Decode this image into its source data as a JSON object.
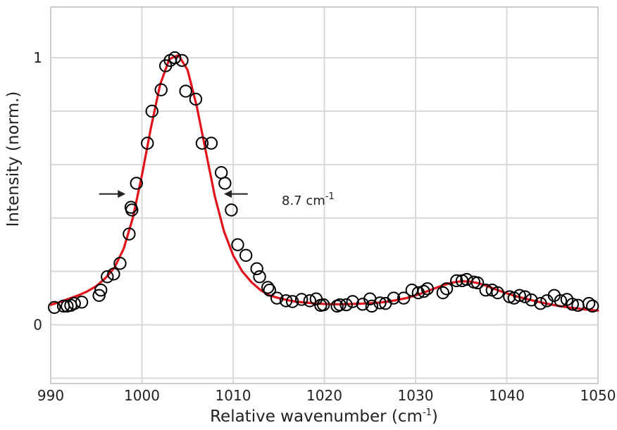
{
  "chart_data": {
    "type": "scatter",
    "xlabel_main": "Relative wavenumber (cm",
    "xlabel_sup": "-1",
    "xlabel_end": ")",
    "ylabel": "Intensity (norm.)",
    "xlim": [
      990,
      1050
    ],
    "ylim": [
      -0.22,
      1.19
    ],
    "xticks": [
      990,
      1000,
      1010,
      1020,
      1030,
      1040,
      1050
    ],
    "xtick_labels": [
      "990",
      "1000",
      "1010",
      "1020",
      "1030",
      "1040",
      "1050"
    ],
    "yticks": [
      0,
      1
    ],
    "ytick_labels": [
      "0",
      "1"
    ],
    "grid": true,
    "gridlines_x": [
      990,
      1000,
      1010,
      1020,
      1030,
      1040,
      1050
    ],
    "gridlines_y": [
      -0.2,
      0,
      0.2,
      0.4,
      0.6,
      0.8,
      1.0
    ],
    "annotation": {
      "text_main": "8.7 cm",
      "text_sup": "-1",
      "y": 0.49,
      "left_arrow_x": [
        995.3,
        998.2
      ],
      "right_arrow_x": [
        1011.6,
        1009.0
      ]
    },
    "colors": {
      "fit": "#e3131b",
      "markers": "#000000",
      "grid": "#d9d9d9",
      "frame": "#cccccc"
    },
    "series": [
      {
        "kind": "fit",
        "x": [
          990,
          991,
          992,
          993,
          994,
          995,
          996,
          997,
          998,
          999,
          1000,
          1001,
          1002,
          1003,
          1004,
          1005,
          1006,
          1007,
          1008,
          1009,
          1010,
          1011,
          1012,
          1013,
          1014,
          1015,
          1016,
          1017,
          1018,
          1019,
          1020,
          1021,
          1022,
          1023,
          1024,
          1025,
          1026,
          1027,
          1028,
          1029,
          1030,
          1031,
          1032,
          1033,
          1034,
          1035,
          1036,
          1037,
          1038,
          1039,
          1040,
          1041,
          1042,
          1043,
          1044,
          1045,
          1046,
          1047,
          1048,
          1049,
          1050
        ],
        "y": [
          0.075,
          0.085,
          0.098,
          0.11,
          0.125,
          0.145,
          0.175,
          0.215,
          0.285,
          0.4,
          0.56,
          0.74,
          0.9,
          0.995,
          1.01,
          0.955,
          0.82,
          0.65,
          0.48,
          0.35,
          0.26,
          0.2,
          0.16,
          0.13,
          0.11,
          0.1,
          0.092,
          0.086,
          0.083,
          0.08,
          0.078,
          0.077,
          0.077,
          0.078,
          0.079,
          0.081,
          0.083,
          0.087,
          0.093,
          0.1,
          0.11,
          0.122,
          0.135,
          0.148,
          0.158,
          0.163,
          0.162,
          0.155,
          0.143,
          0.13,
          0.118,
          0.107,
          0.098,
          0.09,
          0.082,
          0.075,
          0.069,
          0.064,
          0.06,
          0.056,
          0.053
        ]
      },
      {
        "kind": "data",
        "x": [
          990.4,
          991.4,
          991.8,
          992.2,
          992.6,
          993.4,
          995.3,
          995.5,
          996.2,
          996.9,
          997.6,
          998.6,
          998.9,
          998.8,
          999.4,
          1000.6,
          1001.1,
          1002.1,
          1002.6,
          1003.1,
          1003.6,
          1004.4,
          1004.8,
          1005.9,
          1006.6,
          1007.6,
          1008.7,
          1009.1,
          1009.8,
          1010.5,
          1011.4,
          1012.6,
          1012.9,
          1013.8,
          1014.0,
          1014.8,
          1015.8,
          1016.5,
          1017.5,
          1018.4,
          1019.1,
          1019.6,
          1019.9,
          1021.4,
          1021.7,
          1022.4,
          1023.1,
          1024.2,
          1025.0,
          1025.2,
          1026.1,
          1026.7,
          1027.6,
          1028.7,
          1029.6,
          1030.3,
          1030.9,
          1031.3,
          1033.0,
          1033.4,
          1034.5,
          1035.1,
          1035.6,
          1036.4,
          1036.8,
          1037.7,
          1038.4,
          1039.0,
          1040.3,
          1040.8,
          1041.4,
          1042.0,
          1042.7,
          1043.7,
          1044.4,
          1045.2,
          1045.9,
          1046.6,
          1047.2,
          1047.8,
          1049.0,
          1049.4
        ],
        "y": [
          0.065,
          0.07,
          0.07,
          0.073,
          0.08,
          0.085,
          0.11,
          0.13,
          0.18,
          0.19,
          0.23,
          0.34,
          0.43,
          0.44,
          0.53,
          0.68,
          0.8,
          0.88,
          0.97,
          0.99,
          1.0,
          0.99,
          0.875,
          0.845,
          0.68,
          0.68,
          0.57,
          0.53,
          0.43,
          0.3,
          0.26,
          0.21,
          0.18,
          0.14,
          0.13,
          0.1,
          0.09,
          0.087,
          0.095,
          0.09,
          0.097,
          0.073,
          0.075,
          0.07,
          0.075,
          0.075,
          0.087,
          0.077,
          0.097,
          0.07,
          0.082,
          0.08,
          0.1,
          0.1,
          0.13,
          0.12,
          0.125,
          0.135,
          0.12,
          0.135,
          0.165,
          0.165,
          0.17,
          0.16,
          0.157,
          0.13,
          0.13,
          0.12,
          0.105,
          0.1,
          0.11,
          0.105,
          0.093,
          0.08,
          0.09,
          0.11,
          0.09,
          0.095,
          0.077,
          0.073,
          0.08,
          0.07
        ]
      }
    ]
  }
}
